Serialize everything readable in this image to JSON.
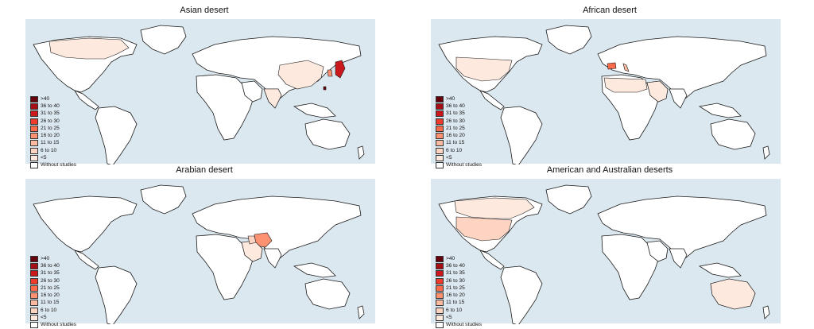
{
  "colors": {
    "ocean": "#dce8ef",
    "land_stroke": "#1a1a1a",
    "no_data": "#ffffff"
  },
  "legend": {
    "items": [
      {
        "label": ">40",
        "color": "#67000d"
      },
      {
        "label": "36 to 40",
        "color": "#a50f15"
      },
      {
        "label": "31 to 35",
        "color": "#cb181d"
      },
      {
        "label": "26 to 30",
        "color": "#ef3b2c"
      },
      {
        "label": "21 to 25",
        "color": "#fb6a4a"
      },
      {
        "label": "16 to 20",
        "color": "#fc9272"
      },
      {
        "label": "11 to 15",
        "color": "#fcbba1"
      },
      {
        "label": "6 to 10",
        "color": "#fdd4c2"
      },
      {
        "label": "<5",
        "color": "#fee9df"
      },
      {
        "label": "Without studies",
        "color": "#ffffff"
      }
    ]
  },
  "panels": [
    {
      "title": "Asian desert",
      "highlighted": [
        {
          "region": "China",
          "class": "<5"
        },
        {
          "region": "Japan",
          "class": "31 to 35"
        },
        {
          "region": "South Korea",
          "class": "16 to 20"
        },
        {
          "region": "Canada",
          "class": "<5"
        },
        {
          "region": "India",
          "class": "<5"
        },
        {
          "region": "Taiwan",
          "class": ">40"
        }
      ]
    },
    {
      "title": "African desert",
      "highlighted": [
        {
          "region": "Spain",
          "class": "21 to 25"
        },
        {
          "region": "United States",
          "class": "<5"
        },
        {
          "region": "Italy",
          "class": "11 to 15"
        },
        {
          "region": "Saudi Arabia",
          "class": "<5"
        },
        {
          "region": "Sahara",
          "class": "<5"
        }
      ]
    },
    {
      "title": "Arabian desert",
      "highlighted": [
        {
          "region": "Iran",
          "class": "16 to 20"
        },
        {
          "region": "Saudi Arabia",
          "class": "<5"
        },
        {
          "region": "Iraq",
          "class": "6 to 10"
        }
      ]
    },
    {
      "title": "American and Australian deserts",
      "highlighted": [
        {
          "region": "United States",
          "class": "6 to 10"
        },
        {
          "region": "Canada",
          "class": "<5"
        },
        {
          "region": "Australia",
          "class": "<5"
        }
      ]
    }
  ]
}
